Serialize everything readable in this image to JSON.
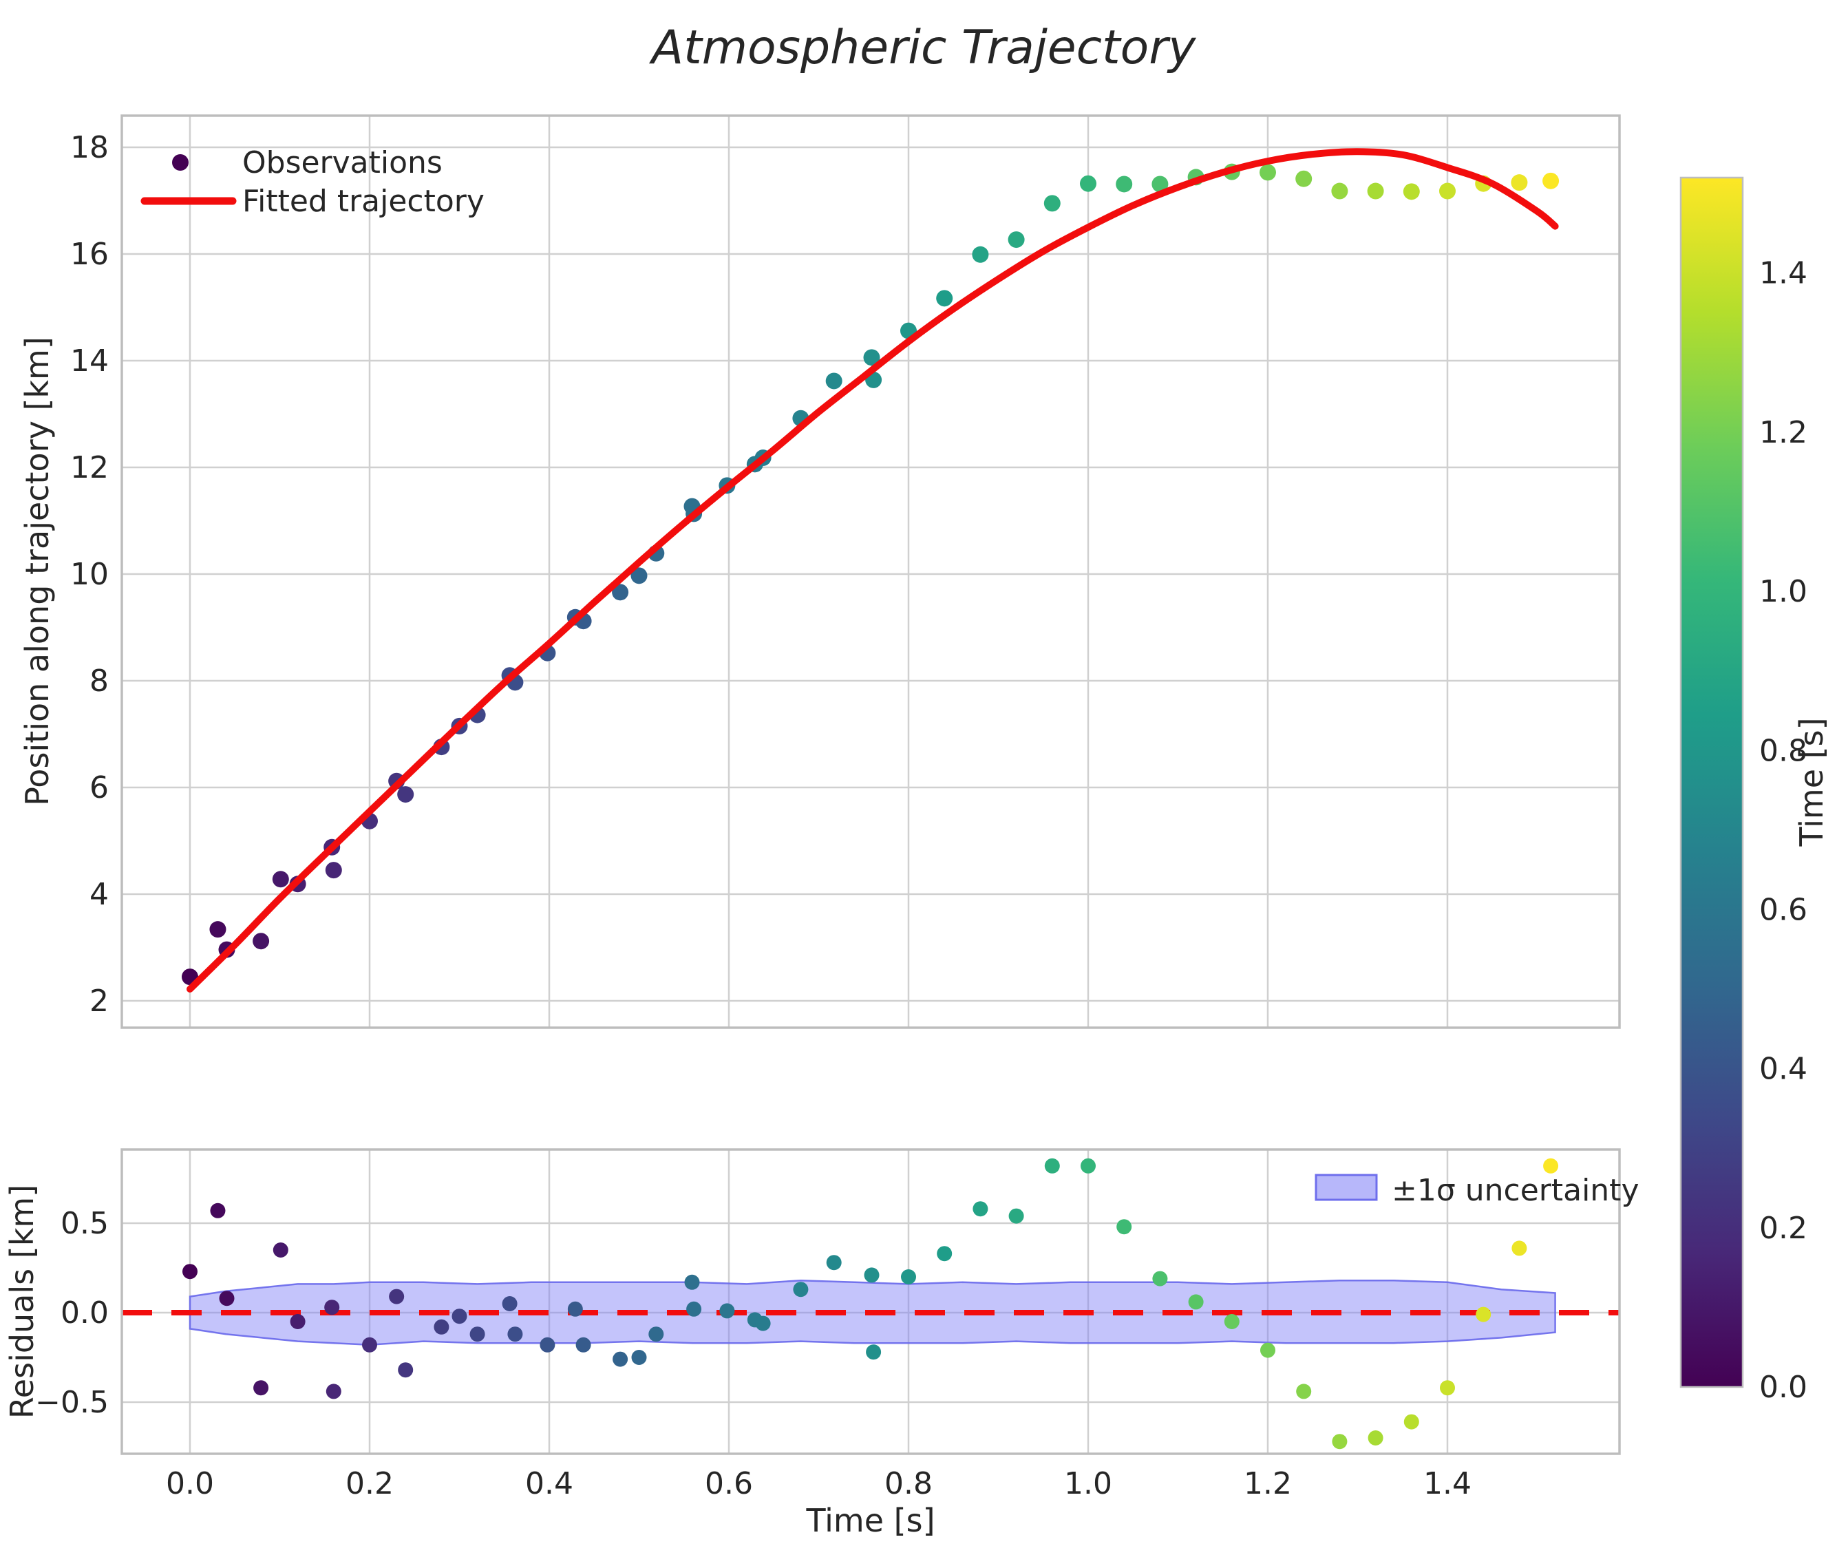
{
  "title": "Atmospheric Trajectory",
  "main_plot": {
    "ylabel": "Position along trajectory [km]",
    "ytick_values": [
      2,
      4,
      6,
      8,
      10,
      12,
      14,
      16,
      18
    ],
    "ytick_labels": [
      "2",
      "4",
      "6",
      "8",
      "10",
      "12",
      "14",
      "16",
      "18"
    ],
    "legend": {
      "observations_label": "Observations",
      "fitted_label": "Fitted trajectory"
    }
  },
  "residual_plot": {
    "ylabel": "Residuals [km]",
    "xlabel": "Time [s]",
    "ytick_values": [
      0.5,
      0.0,
      -0.5
    ],
    "ytick_labels": [
      "0.5",
      "0.0",
      "−0.5"
    ],
    "xtick_values": [
      0.0,
      0.2,
      0.4,
      0.6,
      0.8,
      1.0,
      1.2,
      1.4
    ],
    "xtick_labels": [
      "0.0",
      "0.2",
      "0.4",
      "0.6",
      "0.8",
      "1.0",
      "1.2",
      "1.4"
    ],
    "legend_label": "±1σ uncertainty"
  },
  "colorbar": {
    "label": "Time [s]",
    "tick_values": [
      0.0,
      0.2,
      0.4,
      0.6,
      0.8,
      1.0,
      1.2,
      1.4
    ],
    "tick_labels": [
      "0.0",
      "0.2",
      "0.4",
      "0.6",
      "0.8",
      "1.0",
      "1.2",
      "1.4"
    ],
    "vmin": 0.0,
    "vmax": 1.52
  },
  "colors": {
    "fit_line": "#f20d0d",
    "zero_line": "#f20d0d",
    "band_fill": "rgba(124,124,246,0.45)",
    "band_edge": "rgba(104,104,235,0.9)",
    "grid": "#d0d0d0",
    "spine": "#bdbdbd",
    "viridis_stops": [
      [
        0,
        "#440154"
      ],
      [
        0.111,
        "#482878"
      ],
      [
        0.222,
        "#3e4989"
      ],
      [
        0.333,
        "#31688e"
      ],
      [
        0.444,
        "#26828e"
      ],
      [
        0.556,
        "#1f9e89"
      ],
      [
        0.667,
        "#35b779"
      ],
      [
        0.778,
        "#6dcd59"
      ],
      [
        0.889,
        "#b4de2c"
      ],
      [
        1,
        "#fde725"
      ]
    ]
  },
  "chart_data": [
    {
      "id": "trajectory",
      "type": "scatter",
      "title": "Atmospheric Trajectory",
      "xlabel": "Time [s]",
      "ylabel": "Position along trajectory [km]",
      "xlim": [
        -0.076,
        1.592
      ],
      "ylim": [
        1.5,
        18.6
      ],
      "grid": true,
      "legend_position": "upper left",
      "colormap": "viridis",
      "color_by": "time",
      "color_range": [
        0.0,
        1.52
      ],
      "points_t_pos_resid": [
        [
          0.0,
          2.45,
          0.23
        ],
        [
          0.031,
          3.34,
          0.57
        ],
        [
          0.041,
          2.96,
          0.08
        ],
        [
          0.079,
          3.12,
          -0.42
        ],
        [
          0.101,
          4.28,
          0.35
        ],
        [
          0.12,
          4.19,
          -0.05
        ],
        [
          0.158,
          4.88,
          0.03
        ],
        [
          0.16,
          4.45,
          -0.44
        ],
        [
          0.2,
          5.37,
          -0.18
        ],
        [
          0.23,
          6.12,
          0.09
        ],
        [
          0.24,
          5.87,
          -0.32
        ],
        [
          0.28,
          6.76,
          -0.08
        ],
        [
          0.3,
          7.15,
          -0.02
        ],
        [
          0.32,
          7.36,
          -0.12
        ],
        [
          0.356,
          8.1,
          0.05
        ],
        [
          0.362,
          7.97,
          -0.12
        ],
        [
          0.398,
          8.52,
          -0.18
        ],
        [
          0.429,
          9.19,
          0.02
        ],
        [
          0.438,
          9.12,
          -0.18
        ],
        [
          0.479,
          9.66,
          -0.26
        ],
        [
          0.5,
          9.97,
          -0.25
        ],
        [
          0.519,
          10.39,
          -0.12
        ],
        [
          0.559,
          11.27,
          0.17
        ],
        [
          0.561,
          11.13,
          0.02
        ],
        [
          0.598,
          11.66,
          0.01
        ],
        [
          0.629,
          12.06,
          -0.04
        ],
        [
          0.638,
          12.18,
          -0.06
        ],
        [
          0.68,
          12.92,
          0.13
        ],
        [
          0.717,
          13.62,
          0.28
        ],
        [
          0.759,
          14.06,
          0.21
        ],
        [
          0.761,
          13.64,
          -0.22
        ],
        [
          0.8,
          14.56,
          0.2
        ],
        [
          0.84,
          15.17,
          0.33
        ],
        [
          0.88,
          15.99,
          0.58
        ],
        [
          0.92,
          16.27,
          0.54
        ],
        [
          0.96,
          16.95,
          0.82
        ],
        [
          1.0,
          17.32,
          0.82
        ],
        [
          1.04,
          17.31,
          0.48
        ],
        [
          1.08,
          17.31,
          0.19
        ],
        [
          1.12,
          17.44,
          0.06
        ],
        [
          1.16,
          17.54,
          -0.05
        ],
        [
          1.2,
          17.53,
          -0.21
        ],
        [
          1.24,
          17.41,
          -0.44
        ],
        [
          1.28,
          17.18,
          -0.72
        ],
        [
          1.32,
          17.18,
          -0.7
        ],
        [
          1.36,
          17.17,
          -0.61
        ],
        [
          1.4,
          17.18,
          -0.42
        ],
        [
          1.44,
          17.32,
          -0.01
        ],
        [
          1.48,
          17.34,
          0.36
        ],
        [
          1.515,
          17.37,
          0.82
        ]
      ],
      "fit_curve_t_pos": [
        [
          0.0,
          2.22
        ],
        [
          0.05,
          3.05
        ],
        [
          0.1,
          3.92
        ],
        [
          0.15,
          4.74
        ],
        [
          0.2,
          5.55
        ],
        [
          0.25,
          6.36
        ],
        [
          0.3,
          7.17
        ],
        [
          0.35,
          7.96
        ],
        [
          0.4,
          8.7
        ],
        [
          0.45,
          9.47
        ],
        [
          0.5,
          10.22
        ],
        [
          0.55,
          10.95
        ],
        [
          0.6,
          11.65
        ],
        [
          0.65,
          12.33
        ],
        [
          0.7,
          13.04
        ],
        [
          0.75,
          13.7
        ],
        [
          0.8,
          14.36
        ],
        [
          0.85,
          14.97
        ],
        [
          0.9,
          15.53
        ],
        [
          0.95,
          16.05
        ],
        [
          1.0,
          16.5
        ],
        [
          1.05,
          16.91
        ],
        [
          1.1,
          17.25
        ],
        [
          1.15,
          17.53
        ],
        [
          1.2,
          17.74
        ],
        [
          1.25,
          17.87
        ],
        [
          1.3,
          17.92
        ],
        [
          1.35,
          17.86
        ],
        [
          1.4,
          17.62
        ],
        [
          1.45,
          17.32
        ],
        [
          1.5,
          16.8
        ],
        [
          1.52,
          16.52
        ]
      ]
    },
    {
      "id": "residuals",
      "type": "scatter",
      "xlabel": "Time [s]",
      "ylabel": "Residuals [km]",
      "xlim": [
        -0.076,
        1.592
      ],
      "ylim": [
        -0.79,
        0.9
      ],
      "grid": true,
      "legend_position": "upper right",
      "zero_line": {
        "value": 0.0,
        "color": "#f20d0d",
        "style": "dashed"
      },
      "residuals_t_r": [
        [
          0.0,
          0.23
        ],
        [
          0.031,
          0.57
        ],
        [
          0.041,
          0.08
        ],
        [
          0.079,
          -0.42
        ],
        [
          0.101,
          0.35
        ],
        [
          0.12,
          -0.05
        ],
        [
          0.158,
          0.03
        ],
        [
          0.16,
          -0.44
        ],
        [
          0.2,
          -0.18
        ],
        [
          0.23,
          0.09
        ],
        [
          0.24,
          -0.32
        ],
        [
          0.28,
          -0.08
        ],
        [
          0.3,
          -0.02
        ],
        [
          0.32,
          -0.12
        ],
        [
          0.356,
          0.05
        ],
        [
          0.362,
          -0.12
        ],
        [
          0.398,
          -0.18
        ],
        [
          0.429,
          0.02
        ],
        [
          0.438,
          -0.18
        ],
        [
          0.479,
          -0.26
        ],
        [
          0.5,
          -0.25
        ],
        [
          0.519,
          -0.12
        ],
        [
          0.559,
          0.17
        ],
        [
          0.561,
          0.02
        ],
        [
          0.598,
          0.01
        ],
        [
          0.629,
          -0.04
        ],
        [
          0.638,
          -0.06
        ],
        [
          0.68,
          0.13
        ],
        [
          0.717,
          0.28
        ],
        [
          0.759,
          0.21
        ],
        [
          0.761,
          -0.22
        ],
        [
          0.8,
          0.2
        ],
        [
          0.84,
          0.33
        ],
        [
          0.88,
          0.58
        ],
        [
          0.92,
          0.54
        ],
        [
          0.96,
          0.82
        ],
        [
          1.0,
          0.82
        ],
        [
          1.04,
          0.48
        ],
        [
          1.08,
          0.19
        ],
        [
          1.12,
          0.06
        ],
        [
          1.16,
          -0.05
        ],
        [
          1.2,
          -0.21
        ],
        [
          1.24,
          -0.44
        ],
        [
          1.28,
          -0.72
        ],
        [
          1.32,
          -0.7
        ],
        [
          1.36,
          -0.61
        ],
        [
          1.4,
          -0.42
        ],
        [
          1.44,
          -0.01
        ],
        [
          1.48,
          0.36
        ],
        [
          1.515,
          0.82
        ]
      ],
      "uncertainty_band_t_lo_hi": [
        [
          0.0,
          -0.09,
          0.09
        ],
        [
          0.04,
          -0.12,
          0.12
        ],
        [
          0.08,
          -0.14,
          0.14
        ],
        [
          0.12,
          -0.16,
          0.16
        ],
        [
          0.16,
          -0.17,
          0.16
        ],
        [
          0.2,
          -0.18,
          0.17
        ],
        [
          0.26,
          -0.16,
          0.17
        ],
        [
          0.32,
          -0.17,
          0.16
        ],
        [
          0.38,
          -0.17,
          0.17
        ],
        [
          0.44,
          -0.17,
          0.17
        ],
        [
          0.5,
          -0.16,
          0.17
        ],
        [
          0.56,
          -0.17,
          0.17
        ],
        [
          0.62,
          -0.17,
          0.16
        ],
        [
          0.68,
          -0.16,
          0.18
        ],
        [
          0.74,
          -0.17,
          0.17
        ],
        [
          0.8,
          -0.17,
          0.16
        ],
        [
          0.86,
          -0.17,
          0.17
        ],
        [
          0.92,
          -0.16,
          0.16
        ],
        [
          0.98,
          -0.17,
          0.17
        ],
        [
          1.04,
          -0.17,
          0.17
        ],
        [
          1.1,
          -0.17,
          0.17
        ],
        [
          1.16,
          -0.16,
          0.16
        ],
        [
          1.22,
          -0.17,
          0.17
        ],
        [
          1.28,
          -0.17,
          0.18
        ],
        [
          1.34,
          -0.17,
          0.18
        ],
        [
          1.4,
          -0.16,
          0.17
        ],
        [
          1.46,
          -0.14,
          0.13
        ],
        [
          1.52,
          -0.11,
          0.11
        ]
      ]
    }
  ]
}
